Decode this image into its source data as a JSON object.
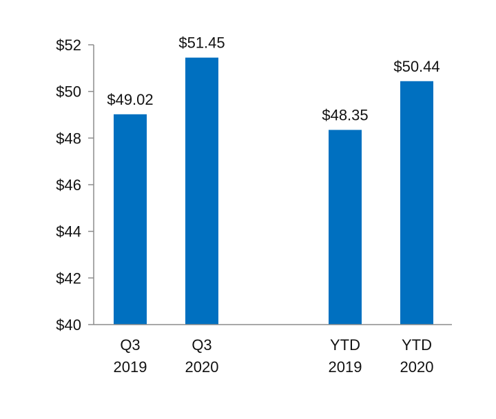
{
  "chart_data": {
    "type": "bar",
    "title": "",
    "xlabel": "",
    "ylabel": "",
    "ylim": [
      40,
      52
    ],
    "yticks": [
      40,
      42,
      44,
      46,
      48,
      50,
      52
    ],
    "ytick_labels": [
      "$40",
      "$42",
      "$44",
      "$46",
      "$48",
      "$50",
      "$52"
    ],
    "grid": false,
    "legend": "none",
    "bar_color": "#0070c0",
    "categories": [
      {
        "line1": "Q3",
        "line2": "2019"
      },
      {
        "line1": "Q3",
        "line2": "2020"
      },
      {
        "line1": "YTD",
        "line2": "2019"
      },
      {
        "line1": "YTD",
        "line2": "2020"
      }
    ],
    "values": [
      49.02,
      51.45,
      48.35,
      50.44
    ],
    "data_labels": [
      "$49.02",
      "$51.45",
      "$48.35",
      "$50.44"
    ]
  }
}
